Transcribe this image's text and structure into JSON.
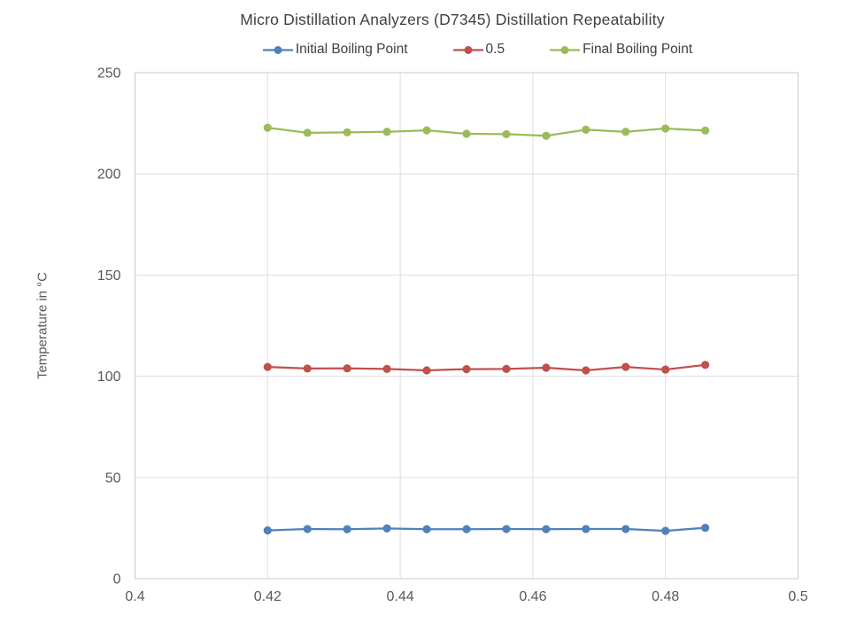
{
  "chart_data": {
    "type": "line",
    "title": "Micro Distillation Analyzers (D7345) Distillation Repeatability",
    "xlabel": "",
    "ylabel": "Temperature in °C",
    "xlim": [
      0.4,
      0.5
    ],
    "ylim": [
      0,
      250
    ],
    "x_ticks": [
      0.4,
      0.42,
      0.44,
      0.46,
      0.48,
      0.5
    ],
    "x_tick_labels": [
      "0.4",
      "0.42",
      "0.44",
      "0.46",
      "0.48",
      "0.5"
    ],
    "y_ticks": [
      0,
      50,
      100,
      150,
      200,
      250
    ],
    "y_tick_labels": [
      "0",
      "50",
      "100",
      "150",
      "200",
      "250"
    ],
    "grid": true,
    "legend_position": "top",
    "x": [
      0.42,
      0.426,
      0.432,
      0.438,
      0.444,
      0.45,
      0.456,
      0.462,
      0.468,
      0.474,
      0.48,
      0.486
    ],
    "series": [
      {
        "name": "Initial Boiling Point",
        "color": "#4F81BD",
        "values": [
          23.8,
          24.5,
          24.4,
          24.8,
          24.4,
          24.4,
          24.5,
          24.4,
          24.5,
          24.5,
          23.6,
          25.1
        ]
      },
      {
        "name": "0.5",
        "color": "#C0504D",
        "values": [
          104.6,
          103.8,
          103.9,
          103.6,
          102.9,
          103.5,
          103.6,
          104.2,
          102.9,
          104.6,
          103.3,
          105.6
        ]
      },
      {
        "name": "Final Boiling Point",
        "color": "#9BBB59",
        "values": [
          222.8,
          220.3,
          220.5,
          220.8,
          221.5,
          219.8,
          219.6,
          218.8,
          221.8,
          220.8,
          222.4,
          221.4
        ]
      }
    ],
    "style": {
      "gridline_color": "#DDDDDD",
      "plot_border_color": "#C9C9C9",
      "tick_label_color": "#595959",
      "title_color": "#404040"
    }
  }
}
